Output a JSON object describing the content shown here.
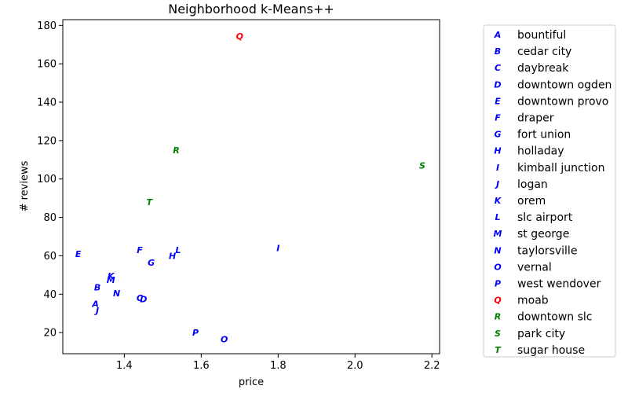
{
  "chart_data": {
    "type": "scatter",
    "title": "Neighborhood k-Means++",
    "xlabel": "price",
    "ylabel": "# reviews",
    "xlim": [
      1.24,
      2.22
    ],
    "ylim": [
      9,
      183
    ],
    "xticks": [
      1.4,
      1.6,
      1.8,
      2.0,
      2.2
    ],
    "yticks": [
      20,
      40,
      60,
      80,
      100,
      120,
      140,
      160,
      180
    ],
    "grid": false,
    "legend_position": "outside right",
    "cluster_colors": {
      "0": "#0000ff",
      "1": "#ff0000",
      "2": "#008000"
    },
    "points": [
      {
        "marker": "A",
        "label": "bountiful",
        "x": 1.325,
        "y": 35,
        "cluster": 0
      },
      {
        "marker": "B",
        "label": "cedar city",
        "x": 1.33,
        "y": 43.5,
        "cluster": 0
      },
      {
        "marker": "C",
        "label": "daybreak",
        "x": 1.44,
        "y": 38,
        "cluster": 0
      },
      {
        "marker": "D",
        "label": "downtown ogden",
        "x": 1.45,
        "y": 37.5,
        "cluster": 0
      },
      {
        "marker": "E",
        "label": "downtown provo",
        "x": 1.28,
        "y": 61,
        "cluster": 0
      },
      {
        "marker": "F",
        "label": "draper",
        "x": 1.44,
        "y": 63,
        "cluster": 0
      },
      {
        "marker": "G",
        "label": "fort union",
        "x": 1.47,
        "y": 56.5,
        "cluster": 0
      },
      {
        "marker": "H",
        "label": "holladay",
        "x": 1.525,
        "y": 60,
        "cluster": 0
      },
      {
        "marker": "I",
        "label": "kimball junction",
        "x": 1.8,
        "y": 64,
        "cluster": 0
      },
      {
        "marker": "J",
        "label": "logan",
        "x": 1.33,
        "y": 31.5,
        "cluster": 0
      },
      {
        "marker": "K",
        "label": "orem",
        "x": 1.365,
        "y": 49.5,
        "cluster": 0
      },
      {
        "marker": "L",
        "label": "slc airport",
        "x": 1.54,
        "y": 63,
        "cluster": 0
      },
      {
        "marker": "M",
        "label": "st george",
        "x": 1.365,
        "y": 47.5,
        "cluster": 0
      },
      {
        "marker": "N",
        "label": "taylorsville",
        "x": 1.38,
        "y": 40.5,
        "cluster": 0
      },
      {
        "marker": "O",
        "label": "vernal",
        "x": 1.66,
        "y": 16.5,
        "cluster": 0
      },
      {
        "marker": "P",
        "label": "west wendover",
        "x": 1.585,
        "y": 20,
        "cluster": 0
      },
      {
        "marker": "Q",
        "label": "moab",
        "x": 1.7,
        "y": 174.5,
        "cluster": 1
      },
      {
        "marker": "R",
        "label": "downtown slc",
        "x": 1.535,
        "y": 115,
        "cluster": 2
      },
      {
        "marker": "S",
        "label": "park city",
        "x": 2.175,
        "y": 107,
        "cluster": 2
      },
      {
        "marker": "T",
        "label": "sugar house",
        "x": 1.465,
        "y": 88,
        "cluster": 2
      }
    ]
  }
}
